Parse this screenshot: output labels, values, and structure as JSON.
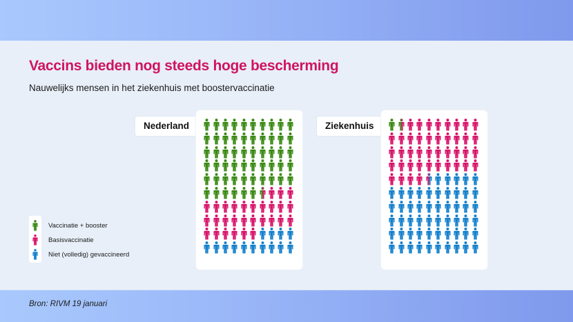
{
  "header": {
    "title": "Vaccins bieden nog steeds hoge bescherming",
    "subtitle": "Nauwelijks mensen in het ziekenhuis met boostervaccinatie"
  },
  "footer": {
    "source": "Bron: RIVM 19 januari"
  },
  "colors": {
    "booster": "#3a8a14",
    "basis": "#d8146a",
    "unvaccinated": "#1480cc",
    "title": "#d0145f"
  },
  "legend": [
    {
      "key": "booster",
      "label": "Vaccinatie + booster"
    },
    {
      "key": "basis",
      "label": "Basisvaccinatie"
    },
    {
      "key": "unvaccinated",
      "label": "Niet (volledig) gevaccineerd"
    }
  ],
  "panels": {
    "nederland": {
      "label": "Nederland"
    },
    "ziekenhuis": {
      "label": "Ziekenhuis"
    }
  },
  "chart_data": {
    "type": "pictogram",
    "title": "Vaccins bieden nog steeds hoge bescherming",
    "subtitle": "Nauwelijks mensen in het ziekenhuis met boostervaccinatie",
    "unit": "per 100 mensen (10x10 icons)",
    "categories": [
      "Nederland",
      "Ziekenhuis"
    ],
    "series": [
      {
        "name": "Vaccinatie + booster",
        "values": [
          56.5,
          1.5
        ]
      },
      {
        "name": "Basisvaccinatie",
        "values": [
          29.5,
          43
        ]
      },
      {
        "name": "Niet (volledig) gevaccineerd",
        "values": [
          14,
          55.5
        ]
      }
    ],
    "source": "Bron: RIVM 19 januari"
  }
}
